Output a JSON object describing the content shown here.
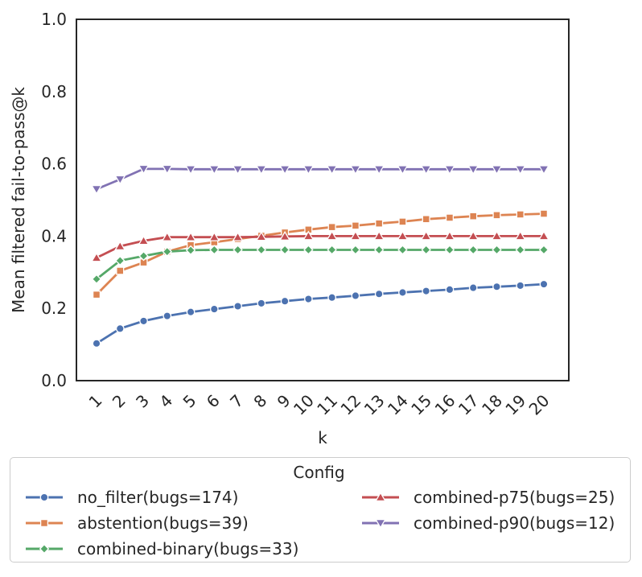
{
  "chart_data": {
    "type": "line",
    "title": "",
    "xlabel": "k",
    "ylabel": "Mean filtered fail-to-pass@k",
    "legend_title": "Config",
    "legend_position": "bottom",
    "grid": false,
    "x": [
      1,
      2,
      3,
      4,
      5,
      6,
      7,
      8,
      9,
      10,
      11,
      12,
      13,
      14,
      15,
      16,
      17,
      18,
      19,
      20
    ],
    "ylim": [
      0.0,
      1.0
    ],
    "yticks": [
      "0.0",
      "0.2",
      "0.4",
      "0.6",
      "0.8",
      "1.0"
    ],
    "text_color": "#262626",
    "spine_color": "#262626",
    "legend_border_color": "#cccccc",
    "series": [
      {
        "name": "no_filter(bugs=174)",
        "color": "#4C72B0",
        "marker": "circle",
        "values": [
          0.103,
          0.144,
          0.165,
          0.179,
          0.19,
          0.198,
          0.206,
          0.214,
          0.22,
          0.226,
          0.23,
          0.235,
          0.24,
          0.244,
          0.248,
          0.252,
          0.257,
          0.26,
          0.263,
          0.267
        ]
      },
      {
        "name": "abstention(bugs=39)",
        "color": "#DD8452",
        "marker": "square",
        "values": [
          0.238,
          0.304,
          0.327,
          0.357,
          0.375,
          0.383,
          0.392,
          0.401,
          0.41,
          0.418,
          0.425,
          0.429,
          0.435,
          0.44,
          0.447,
          0.451,
          0.455,
          0.458,
          0.46,
          0.462
        ]
      },
      {
        "name": "combined-binary(bugs=33)",
        "color": "#55A868",
        "marker": "diamond",
        "values": [
          0.281,
          0.332,
          0.345,
          0.357,
          0.361,
          0.362,
          0.362,
          0.362,
          0.362,
          0.362,
          0.362,
          0.362,
          0.362,
          0.362,
          0.362,
          0.362,
          0.362,
          0.362,
          0.362,
          0.362
        ]
      },
      {
        "name": "combined-p75(bugs=25)",
        "color": "#C44E52",
        "marker": "triangle-up",
        "values": [
          0.34,
          0.372,
          0.387,
          0.397,
          0.397,
          0.397,
          0.397,
          0.398,
          0.399,
          0.4,
          0.4,
          0.4,
          0.4,
          0.4,
          0.4,
          0.4,
          0.4,
          0.4,
          0.4,
          0.4
        ]
      },
      {
        "name": "combined-p90(bugs=12)",
        "color": "#8172B3",
        "marker": "triangle-down",
        "values": [
          0.53,
          0.557,
          0.586,
          0.586,
          0.585,
          0.585,
          0.585,
          0.585,
          0.585,
          0.585,
          0.585,
          0.585,
          0.585,
          0.585,
          0.585,
          0.585,
          0.585,
          0.585,
          0.585,
          0.585
        ]
      }
    ]
  }
}
